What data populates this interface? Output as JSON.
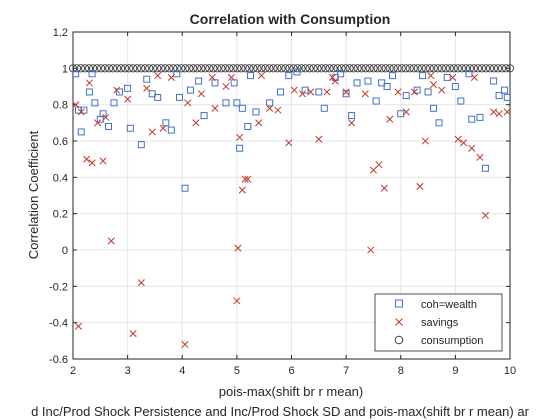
{
  "chart_data": {
    "type": "scatter",
    "title": "Correlation with Consumption",
    "xlabel": "pois-max(shift br r mean)",
    "xlabel2": "d Inc/Prod Shock Persistence and Inc/Prod Shock SD and pois-max(shift br r mean) ar",
    "ylabel": "Correlation Coefficient",
    "xlim": [
      2,
      10
    ],
    "ylim": [
      -0.6,
      1.2
    ],
    "xticks": [
      "2",
      "3",
      "4",
      "5",
      "6",
      "7",
      "8",
      "9",
      "10"
    ],
    "yticks": [
      "-0.6",
      "-0.4",
      "-0.2",
      "0",
      "0.2",
      "0.4",
      "0.6",
      "0.8",
      "1",
      "1.2"
    ],
    "grid": true,
    "legend_position": "bottom-right",
    "series": [
      {
        "name": "coh=wealth",
        "marker": "square",
        "color": "#4472c4",
        "points": [
          [
            2.05,
            0.97
          ],
          [
            2.1,
            0.77
          ],
          [
            2.15,
            0.65
          ],
          [
            2.2,
            0.77
          ],
          [
            2.3,
            0.87
          ],
          [
            2.4,
            0.81
          ],
          [
            2.5,
            0.72
          ],
          [
            2.55,
            0.75
          ],
          [
            2.65,
            0.68
          ],
          [
            2.75,
            0.81
          ],
          [
            2.85,
            0.87
          ],
          [
            3.0,
            0.89
          ],
          [
            3.05,
            0.67
          ],
          [
            3.25,
            0.58
          ],
          [
            3.35,
            0.94
          ],
          [
            3.45,
            0.86
          ],
          [
            3.55,
            0.84
          ],
          [
            3.7,
            0.7
          ],
          [
            3.8,
            0.66
          ],
          [
            3.95,
            0.84
          ],
          [
            4.05,
            0.34
          ],
          [
            4.15,
            0.88
          ],
          [
            4.3,
            0.93
          ],
          [
            4.4,
            0.74
          ],
          [
            4.6,
            0.92
          ],
          [
            4.8,
            0.81
          ],
          [
            4.95,
            0.92
          ],
          [
            5.0,
            0.81
          ],
          [
            5.05,
            0.56
          ],
          [
            5.1,
            0.78
          ],
          [
            5.2,
            0.68
          ],
          [
            5.35,
            0.76
          ],
          [
            5.6,
            0.81
          ],
          [
            5.8,
            0.87
          ],
          [
            5.95,
            0.96
          ],
          [
            6.1,
            0.98
          ],
          [
            6.25,
            0.88
          ],
          [
            6.5,
            0.87
          ],
          [
            6.6,
            0.78
          ],
          [
            6.8,
            0.95
          ],
          [
            7.0,
            0.86
          ],
          [
            7.1,
            0.74
          ],
          [
            7.2,
            0.92
          ],
          [
            7.4,
            0.93
          ],
          [
            7.55,
            0.82
          ],
          [
            7.65,
            0.92
          ],
          [
            7.75,
            0.9
          ],
          [
            7.85,
            0.96
          ],
          [
            8.0,
            0.75
          ],
          [
            8.1,
            0.85
          ],
          [
            8.3,
            0.88
          ],
          [
            8.5,
            0.87
          ],
          [
            8.6,
            0.78
          ],
          [
            8.7,
            0.7
          ],
          [
            8.85,
            0.95
          ],
          [
            9.0,
            0.9
          ],
          [
            9.1,
            0.82
          ],
          [
            9.3,
            0.72
          ],
          [
            9.45,
            0.73
          ],
          [
            9.55,
            0.45
          ],
          [
            9.7,
            0.93
          ],
          [
            9.8,
            0.85
          ],
          [
            9.9,
            0.88
          ],
          [
            9.95,
            0.84
          ],
          [
            2.35,
            0.97
          ],
          [
            3.9,
            0.97
          ],
          [
            5.25,
            0.96
          ],
          [
            6.9,
            0.97
          ],
          [
            8.4,
            0.96
          ],
          [
            9.25,
            0.97
          ]
        ]
      },
      {
        "name": "savings",
        "marker": "x",
        "color": "#c0392b",
        "points": [
          [
            2.05,
            0.8
          ],
          [
            2.1,
            -0.42
          ],
          [
            2.15,
            0.76
          ],
          [
            2.25,
            0.5
          ],
          [
            2.35,
            0.48
          ],
          [
            2.45,
            0.7
          ],
          [
            2.55,
            0.49
          ],
          [
            2.6,
            0.73
          ],
          [
            2.7,
            0.05
          ],
          [
            2.8,
            0.88
          ],
          [
            3.0,
            0.83
          ],
          [
            3.1,
            -0.46
          ],
          [
            3.25,
            -0.18
          ],
          [
            3.35,
            0.89
          ],
          [
            3.45,
            0.65
          ],
          [
            3.65,
            0.67
          ],
          [
            3.8,
            0.95
          ],
          [
            4.05,
            -0.52
          ],
          [
            4.1,
            0.81
          ],
          [
            4.25,
            0.7
          ],
          [
            4.35,
            0.86
          ],
          [
            4.6,
            0.78
          ],
          [
            4.8,
            0.9
          ],
          [
            4.9,
            0.95
          ],
          [
            5.0,
            -0.28
          ],
          [
            5.02,
            0.01
          ],
          [
            5.05,
            0.62
          ],
          [
            5.1,
            0.33
          ],
          [
            5.15,
            0.39
          ],
          [
            5.2,
            0.39
          ],
          [
            5.4,
            0.7
          ],
          [
            5.6,
            0.78
          ],
          [
            5.75,
            0.77
          ],
          [
            5.95,
            0.59
          ],
          [
            6.05,
            0.88
          ],
          [
            6.2,
            0.86
          ],
          [
            6.35,
            0.87
          ],
          [
            6.5,
            0.61
          ],
          [
            6.65,
            0.87
          ],
          [
            6.8,
            0.93
          ],
          [
            7.0,
            0.87
          ],
          [
            7.1,
            0.7
          ],
          [
            7.35,
            0.86
          ],
          [
            7.45,
            0.0
          ],
          [
            7.5,
            0.44
          ],
          [
            7.6,
            0.47
          ],
          [
            7.7,
            0.34
          ],
          [
            7.8,
            0.72
          ],
          [
            7.95,
            0.87
          ],
          [
            8.1,
            0.76
          ],
          [
            8.25,
            0.87
          ],
          [
            8.35,
            0.35
          ],
          [
            8.45,
            0.6
          ],
          [
            8.6,
            0.91
          ],
          [
            8.75,
            0.88
          ],
          [
            8.95,
            0.95
          ],
          [
            9.05,
            0.61
          ],
          [
            9.15,
            0.59
          ],
          [
            9.3,
            0.56
          ],
          [
            9.45,
            0.51
          ],
          [
            9.55,
            0.19
          ],
          [
            9.7,
            0.76
          ],
          [
            9.8,
            0.75
          ],
          [
            9.95,
            0.76
          ],
          [
            2.3,
            0.92
          ],
          [
            3.55,
            0.96
          ],
          [
            4.55,
            0.95
          ],
          [
            5.45,
            0.96
          ],
          [
            6.75,
            0.95
          ],
          [
            8.55,
            0.96
          ],
          [
            9.35,
            0.95
          ]
        ]
      },
      {
        "name": "consumption",
        "marker": "circle",
        "color": "#404040",
        "constant_value": 1,
        "x_range": [
          2,
          10
        ],
        "n_points": 110
      }
    ]
  }
}
